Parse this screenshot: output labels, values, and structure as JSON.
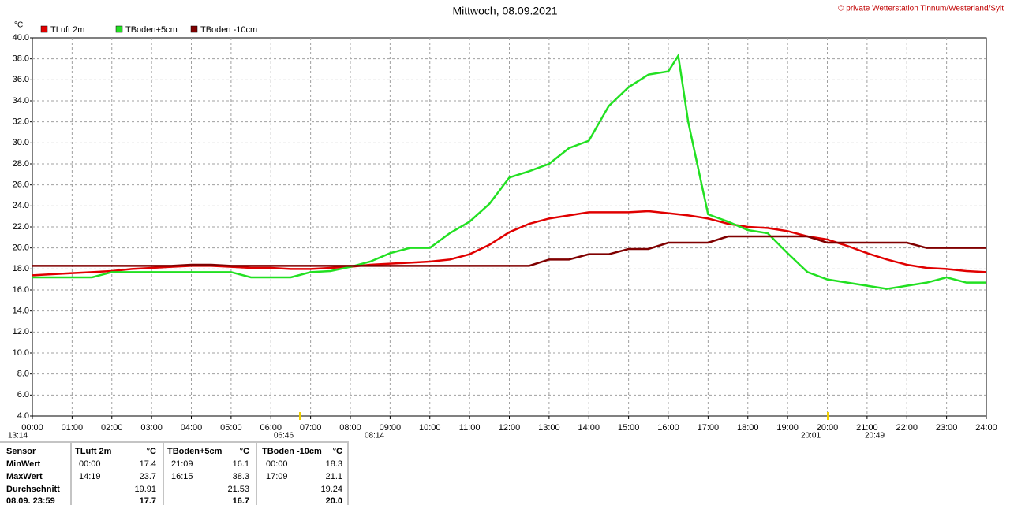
{
  "chart_data": {
    "type": "line",
    "title": "Mittwoch, 08.09.2021",
    "copyright": "© private Wetterstation Tinnum/Westerland/Sylt",
    "y_unit": "°C",
    "grid": true,
    "legend": "top-left",
    "xlim": [
      0,
      24
    ],
    "ylim": [
      4,
      40
    ],
    "xticks": [
      {
        "value": 0,
        "label": "00:00"
      },
      {
        "value": 1,
        "label": "01:00"
      },
      {
        "value": 2,
        "label": "02:00"
      },
      {
        "value": 3,
        "label": "03:00"
      },
      {
        "value": 4,
        "label": "04:00"
      },
      {
        "value": 5,
        "label": "05:00"
      },
      {
        "value": 6,
        "label": "06:00"
      },
      {
        "value": 7,
        "label": "07:00"
      },
      {
        "value": 8,
        "label": "08:00"
      },
      {
        "value": 9,
        "label": "09:00"
      },
      {
        "value": 10,
        "label": "10:00"
      },
      {
        "value": 11,
        "label": "11:00"
      },
      {
        "value": 12,
        "label": "12:00"
      },
      {
        "value": 13,
        "label": "13:00"
      },
      {
        "value": 14,
        "label": "14:00"
      },
      {
        "value": 15,
        "label": "15:00"
      },
      {
        "value": 16,
        "label": "16:00"
      },
      {
        "value": 17,
        "label": "17:00"
      },
      {
        "value": 18,
        "label": "18:00"
      },
      {
        "value": 19,
        "label": "19:00"
      },
      {
        "value": 20,
        "label": "20:00"
      },
      {
        "value": 21,
        "label": "21:00"
      },
      {
        "value": 22,
        "label": "22:00"
      },
      {
        "value": 23,
        "label": "23:00"
      },
      {
        "value": 24,
        "label": "24:00"
      }
    ],
    "yticks": [
      {
        "value": 4,
        "label": "4.0"
      },
      {
        "value": 6,
        "label": "6.0"
      },
      {
        "value": 8,
        "label": "8.0"
      },
      {
        "value": 10,
        "label": "10.0"
      },
      {
        "value": 12,
        "label": "12.0"
      },
      {
        "value": 14,
        "label": "14.0"
      },
      {
        "value": 16,
        "label": "16.0"
      },
      {
        "value": 18,
        "label": "18.0"
      },
      {
        "value": 20,
        "label": "20.0"
      },
      {
        "value": 22,
        "label": "22.0"
      },
      {
        "value": 24,
        "label": "24.0"
      },
      {
        "value": 26,
        "label": "26.0"
      },
      {
        "value": 28,
        "label": "28.0"
      },
      {
        "value": 30,
        "label": "30.0"
      },
      {
        "value": 32,
        "label": "32.0"
      },
      {
        "value": 34,
        "label": "34.0"
      },
      {
        "value": 36,
        "label": "36.0"
      },
      {
        "value": 38,
        "label": "38.0"
      },
      {
        "value": 40,
        "label": "40.0"
      }
    ],
    "x": [
      0,
      0.5,
      1,
      1.5,
      2,
      2.5,
      3,
      3.5,
      4,
      4.5,
      5,
      5.5,
      6,
      6.5,
      7,
      7.5,
      8,
      8.5,
      9,
      9.5,
      10,
      10.5,
      11,
      11.5,
      12,
      12.5,
      13,
      13.5,
      14,
      14.5,
      15,
      15.5,
      16,
      16.25,
      16.5,
      17,
      17.5,
      18,
      18.5,
      19,
      19.5,
      20,
      20.5,
      21,
      21.5,
      22,
      22.5,
      23,
      23.5,
      24
    ],
    "series": [
      {
        "name": "TLuft 2m",
        "color": "#e00000",
        "values": [
          17.4,
          17.5,
          17.6,
          17.7,
          17.8,
          18.0,
          18.1,
          18.2,
          18.3,
          18.3,
          18.2,
          18.1,
          18.1,
          18.0,
          18.0,
          18.1,
          18.2,
          18.4,
          18.5,
          18.6,
          18.7,
          18.9,
          19.4,
          20.3,
          21.5,
          22.3,
          22.8,
          23.1,
          23.4,
          23.4,
          23.4,
          23.5,
          23.3,
          23.2,
          23.1,
          22.8,
          22.3,
          22.0,
          21.9,
          21.6,
          21.1,
          20.8,
          20.2,
          19.5,
          18.9,
          18.4,
          18.1,
          18.0,
          17.8,
          17.7
        ]
      },
      {
        "name": "TBoden+5cm",
        "color": "#22e022",
        "values": [
          17.2,
          17.2,
          17.2,
          17.2,
          17.7,
          17.7,
          17.7,
          17.7,
          17.7,
          17.7,
          17.7,
          17.2,
          17.2,
          17.2,
          17.7,
          17.8,
          18.2,
          18.7,
          19.5,
          20.0,
          20.0,
          21.4,
          22.5,
          24.2,
          26.7,
          27.3,
          28.0,
          29.5,
          30.2,
          33.5,
          35.3,
          36.5,
          36.8,
          38.3,
          32.0,
          23.2,
          22.5,
          21.7,
          21.4,
          19.5,
          17.7,
          17.0,
          16.7,
          16.4,
          16.1,
          16.4,
          16.7,
          17.2,
          16.7,
          16.7
        ]
      },
      {
        "name": "TBoden -10cm",
        "color": "#800000",
        "values": [
          18.3,
          18.3,
          18.3,
          18.3,
          18.3,
          18.3,
          18.3,
          18.3,
          18.4,
          18.4,
          18.3,
          18.3,
          18.3,
          18.3,
          18.3,
          18.3,
          18.3,
          18.3,
          18.3,
          18.3,
          18.3,
          18.3,
          18.3,
          18.3,
          18.3,
          18.3,
          18.9,
          18.9,
          19.4,
          19.4,
          19.9,
          19.9,
          20.5,
          20.5,
          20.5,
          20.5,
          21.1,
          21.1,
          21.1,
          21.1,
          21.1,
          20.5,
          20.5,
          20.5,
          20.5,
          20.5,
          20.0,
          20.0,
          20.0,
          20.0
        ]
      }
    ],
    "time_labels": [
      "13:14",
      "06:46",
      "08:14",
      "20:01",
      "20:49"
    ]
  },
  "stats": {
    "header": [
      "Sensor",
      "TLuft 2m",
      "°C",
      "TBoden+5cm",
      "°C",
      "TBoden -10cm",
      "°C"
    ],
    "rows": [
      [
        "MinWert",
        "00:00",
        "17.4",
        "21:09",
        "16.1",
        "00:00",
        "18.3"
      ],
      [
        "MaxWert",
        "14:19",
        "23.7",
        "16:15",
        "38.3",
        "17:09",
        "21.1"
      ],
      [
        "Durchschnitt",
        null,
        "19.91",
        null,
        "21.53",
        null,
        "19.24"
      ],
      [
        "08.09. 23:59",
        null,
        "17.7",
        null,
        "16.7",
        null,
        "20.0"
      ]
    ]
  }
}
